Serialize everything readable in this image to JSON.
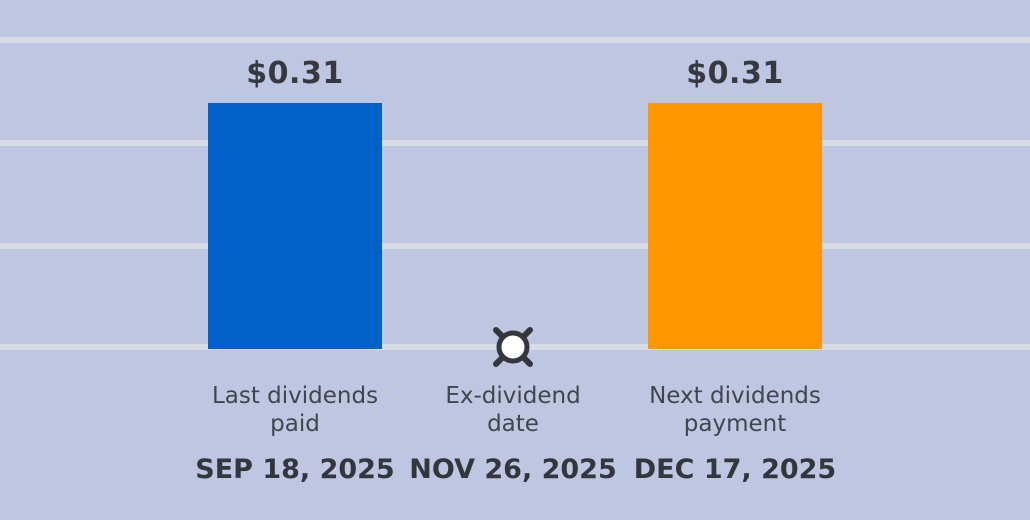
{
  "chart_data": {
    "type": "bar",
    "title": "",
    "xlabel": "",
    "ylabel": "",
    "ylim": [
      0,
      0.31
    ],
    "grid": "horizontal",
    "legend": "none",
    "background_color": "#BFC6E1",
    "gridline_color": "#D7DBE4",
    "value_text_color": "#363A40",
    "label_text_color": "#41454E",
    "categories": [
      "Last dividends paid",
      "Ex-dividend date",
      "Next dividends payment"
    ],
    "x": [
      "SEP 18, 2025",
      "NOV 26, 2025",
      "DEC 17, 2025"
    ],
    "values": [
      0.31,
      null,
      0.31
    ],
    "columns": [
      {
        "kind": "bar",
        "value": 0.31,
        "value_label": "$0.31",
        "color": "#0061C6",
        "label_line1": "Last dividends",
        "label_line2": "paid",
        "label": "Last dividends paid",
        "date": "SEP 18, 2025"
      },
      {
        "kind": "marker",
        "value": null,
        "value_label": "",
        "marker_icon": "circle-x-icon",
        "marker_stroke_color": "#34373D",
        "marker_fill_color": "#FFFFFF",
        "label_line1": "Ex-dividend",
        "label_line2": "date",
        "label": "Ex-dividend date",
        "date": "NOV 26, 2025"
      },
      {
        "kind": "bar",
        "value": 0.31,
        "value_label": "$0.31",
        "color": "#FF9800",
        "label_line1": "Next dividends",
        "label_line2": "payment",
        "label": "Next dividends payment",
        "date": "DEC 17, 2025"
      }
    ]
  }
}
